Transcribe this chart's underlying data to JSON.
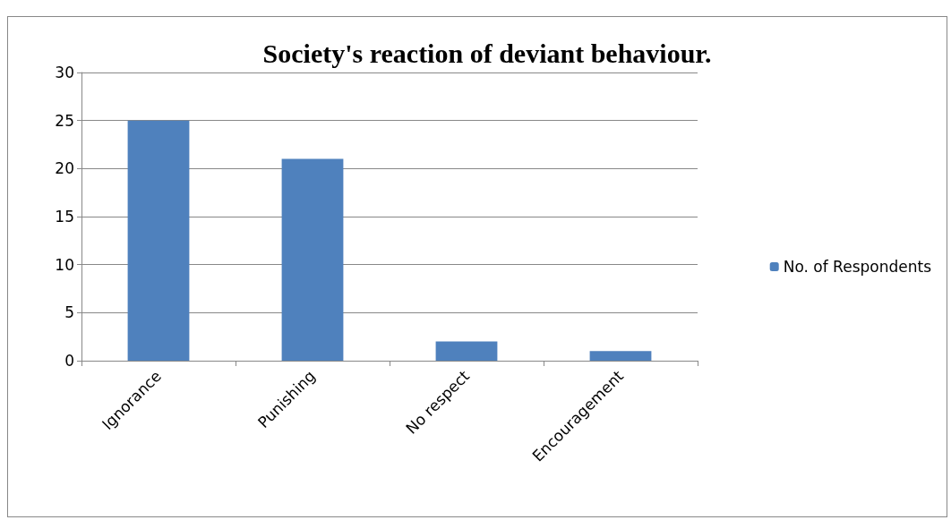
{
  "chart_data": {
    "type": "bar",
    "title": "Society's reaction of deviant behaviour.",
    "categories": [
      "Ignorance",
      "Punishing",
      "No respect",
      "Encouragement"
    ],
    "series": [
      {
        "name": "No. of Respondents",
        "color": "#4f81bd",
        "values": [
          25,
          21,
          2,
          1
        ]
      }
    ],
    "ylim": [
      0,
      30
    ],
    "yticks": [
      0,
      5,
      10,
      15,
      20,
      25,
      30
    ],
    "grid": "y",
    "legend": "right"
  }
}
